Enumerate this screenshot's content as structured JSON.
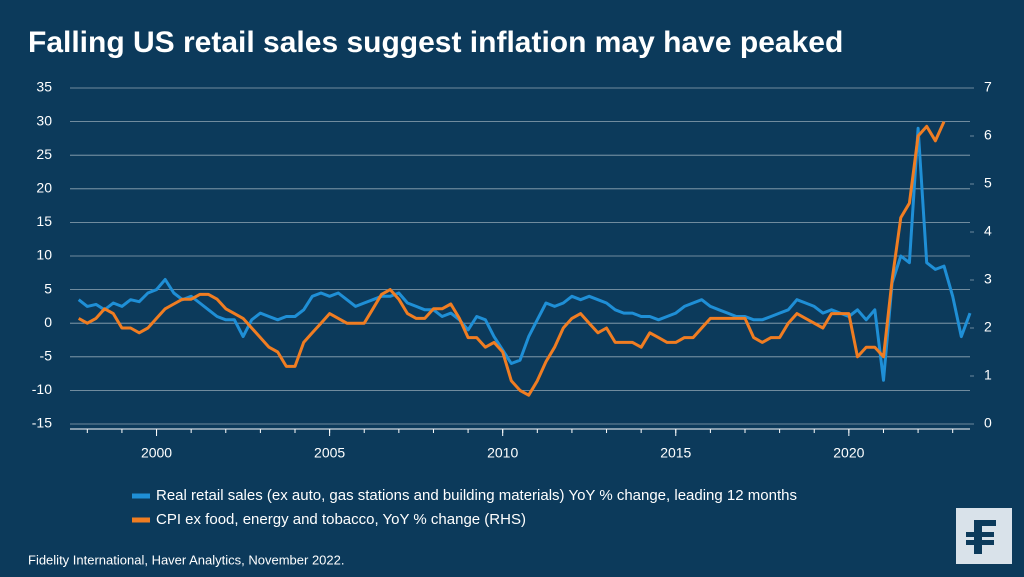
{
  "chart_data": {
    "type": "line",
    "title": "Falling US retail sales suggest inflation may have peaked",
    "source": "Fidelity International, Haver Analytics, November 2022.",
    "x": [
      1997.75,
      1998,
      1998.25,
      1998.5,
      1998.75,
      1999,
      1999.25,
      1999.5,
      1999.75,
      2000,
      2000.25,
      2000.5,
      2000.75,
      2001,
      2001.25,
      2001.5,
      2001.75,
      2002,
      2002.25,
      2002.5,
      2002.75,
      2003,
      2003.25,
      2003.5,
      2003.75,
      2004,
      2004.25,
      2004.5,
      2004.75,
      2005,
      2005.25,
      2005.5,
      2005.75,
      2006,
      2006.25,
      2006.5,
      2006.75,
      2007,
      2007.25,
      2007.5,
      2007.75,
      2008,
      2008.25,
      2008.5,
      2008.75,
      2009,
      2009.25,
      2009.5,
      2009.75,
      2010,
      2010.25,
      2010.5,
      2010.75,
      2011,
      2011.25,
      2011.5,
      2011.75,
      2012,
      2012.25,
      2012.5,
      2012.75,
      2013,
      2013.25,
      2013.5,
      2013.75,
      2014,
      2014.25,
      2014.5,
      2014.75,
      2015,
      2015.25,
      2015.5,
      2015.75,
      2016,
      2016.25,
      2016.5,
      2016.75,
      2017,
      2017.25,
      2017.5,
      2017.75,
      2018,
      2018.25,
      2018.5,
      2018.75,
      2019,
      2019.25,
      2019.5,
      2019.75,
      2020,
      2020.25,
      2020.5,
      2020.75,
      2021,
      2021.25,
      2021.5,
      2021.75,
      2022,
      2022.25,
      2022.5,
      2022.75,
      2023,
      2023.25,
      2023.5
    ],
    "series": [
      {
        "name": "Real retail sales (ex auto, gas stations and building materials) YoY % change, leading 12 months",
        "color": "#1f8fd6",
        "axis": "y",
        "values": [
          3.5,
          2.5,
          2.8,
          2.0,
          3.0,
          2.5,
          3.5,
          3.2,
          4.5,
          5.0,
          6.5,
          4.5,
          3.5,
          4.0,
          3.0,
          2.0,
          1.0,
          0.5,
          0.5,
          -2.0,
          0.5,
          1.5,
          1.0,
          0.5,
          1.0,
          1.0,
          2.0,
          4.0,
          4.5,
          4.0,
          4.5,
          3.5,
          2.5,
          3.0,
          3.5,
          4.0,
          4.0,
          4.5,
          3.0,
          2.5,
          2.0,
          2.0,
          1.0,
          1.5,
          0.5,
          -1.0,
          1.0,
          0.5,
          -2.0,
          -4.0,
          -6.0,
          -5.5,
          -2.0,
          0.5,
          3.0,
          2.5,
          3.0,
          4.0,
          3.5,
          4.0,
          3.5,
          3.0,
          2.0,
          1.5,
          1.5,
          1.0,
          1.0,
          0.5,
          1.0,
          1.5,
          2.5,
          3.0,
          3.5,
          2.5,
          2.0,
          1.5,
          1.0,
          1.0,
          0.5,
          0.5,
          1.0,
          1.5,
          2.0,
          3.5,
          3.0,
          2.5,
          1.5,
          2.0,
          1.5,
          1.0,
          2.0,
          0.5,
          2.0,
          -8.5,
          6.0,
          10.0,
          9.0,
          29.0,
          9.0,
          8.0,
          8.5,
          4.0,
          -2.0,
          1.5
        ]
      },
      {
        "name": "CPI ex food, energy and tobacco, YoY % change (RHS)",
        "color": "#f07d22",
        "axis": "y2",
        "values": [
          2.2,
          2.1,
          2.2,
          2.4,
          2.3,
          2.0,
          2.0,
          1.9,
          2.0,
          2.2,
          2.4,
          2.5,
          2.6,
          2.6,
          2.7,
          2.7,
          2.6,
          2.4,
          2.3,
          2.2,
          2.0,
          1.8,
          1.6,
          1.5,
          1.2,
          1.2,
          1.7,
          1.9,
          2.1,
          2.3,
          2.2,
          2.1,
          2.1,
          2.1,
          2.4,
          2.7,
          2.8,
          2.6,
          2.3,
          2.2,
          2.2,
          2.4,
          2.4,
          2.5,
          2.2,
          1.8,
          1.8,
          1.6,
          1.7,
          1.5,
          0.9,
          0.7,
          0.6,
          0.9,
          1.3,
          1.6,
          2.0,
          2.2,
          2.3,
          2.1,
          1.9,
          2.0,
          1.7,
          1.7,
          1.7,
          1.6,
          1.9,
          1.8,
          1.7,
          1.7,
          1.8,
          1.8,
          2.0,
          2.2,
          2.2,
          2.2,
          2.2,
          2.2,
          1.8,
          1.7,
          1.8,
          1.8,
          2.1,
          2.3,
          2.2,
          2.1,
          2.0,
          2.3,
          2.3,
          2.3,
          1.4,
          1.6,
          1.6,
          1.4,
          3.0,
          4.3,
          4.6,
          6.0,
          6.2,
          5.9,
          6.3,
          null,
          null,
          null
        ]
      }
    ],
    "xlim": [
      1997.5,
      2023.5
    ],
    "xticks": [
      2000,
      2005,
      2010,
      2015,
      2020
    ],
    "ylim": [
      -15,
      35
    ],
    "yticks": [
      35,
      30,
      25,
      20,
      15,
      10,
      5,
      0,
      -5,
      -10,
      -15
    ],
    "y2lim": [
      0,
      7
    ],
    "y2ticks": [
      7,
      6,
      5,
      4,
      3,
      2,
      1,
      0
    ],
    "grid": true
  }
}
